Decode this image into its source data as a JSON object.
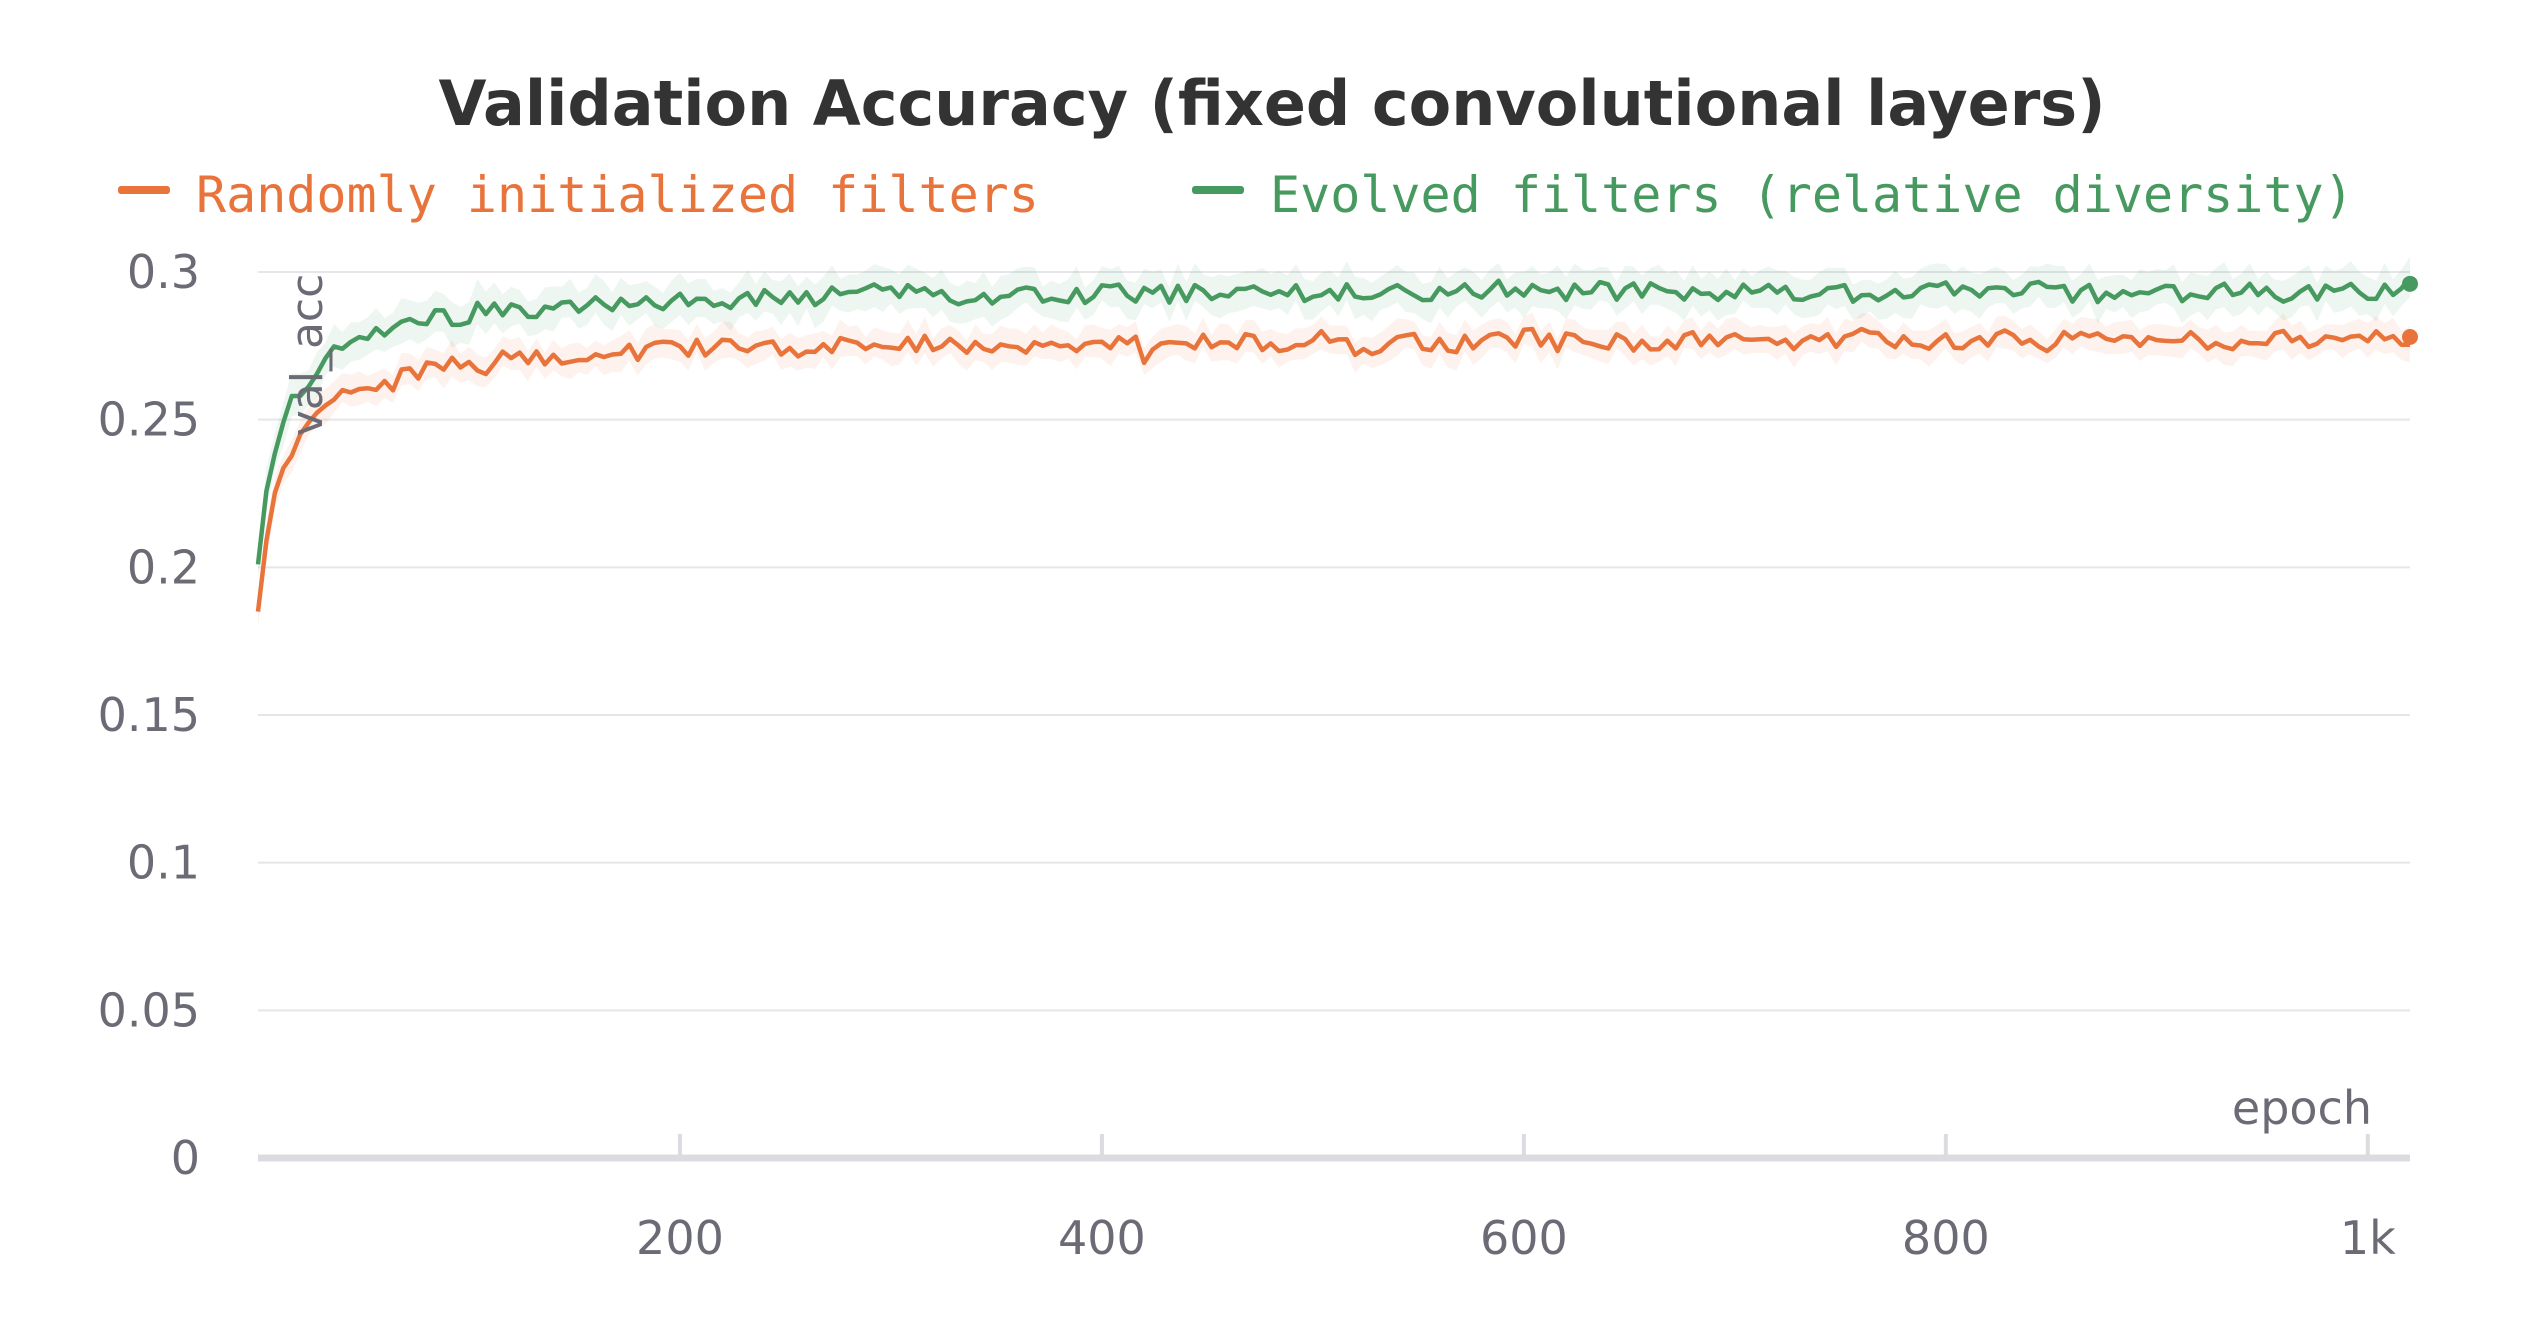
{
  "chart_data": {
    "type": "line",
    "title": "Validation Accuracy (fixed convolutional layers)",
    "xlabel": "epoch",
    "ylabel": "val_acc",
    "xlim": [
      0,
      1020
    ],
    "ylim": [
      0,
      0.3
    ],
    "x_ticks": [
      {
        "value": 200,
        "label": "200"
      },
      {
        "value": 400,
        "label": "400"
      },
      {
        "value": 600,
        "label": "600"
      },
      {
        "value": 800,
        "label": "800"
      },
      {
        "value": 1000,
        "label": "1k"
      }
    ],
    "y_ticks": [
      {
        "value": 0,
        "label": "0"
      },
      {
        "value": 0.05,
        "label": "0.05"
      },
      {
        "value": 0.1,
        "label": "0.1"
      },
      {
        "value": 0.15,
        "label": "0.15"
      },
      {
        "value": 0.2,
        "label": "0.2"
      },
      {
        "value": 0.25,
        "label": "0.25"
      },
      {
        "value": 0.3,
        "label": "0.3"
      }
    ],
    "grid": true,
    "legend_position": "top",
    "series": [
      {
        "name": "Randomly initialized filters",
        "color": "#e8743b",
        "band": 0.004,
        "points": [
          [
            0,
            0.185
          ],
          [
            5,
            0.215
          ],
          [
            10,
            0.232
          ],
          [
            15,
            0.236
          ],
          [
            20,
            0.245
          ],
          [
            25,
            0.25
          ],
          [
            30,
            0.254
          ],
          [
            35,
            0.256
          ],
          [
            40,
            0.26
          ],
          [
            45,
            0.259
          ],
          [
            50,
            0.262
          ],
          [
            55,
            0.261
          ],
          [
            60,
            0.263
          ],
          [
            65,
            0.262
          ],
          [
            70,
            0.27
          ],
          [
            75,
            0.264
          ],
          [
            80,
            0.272
          ],
          [
            85,
            0.266
          ],
          [
            90,
            0.268
          ],
          [
            100,
            0.269
          ],
          [
            110,
            0.268
          ],
          [
            120,
            0.272
          ],
          [
            130,
            0.27
          ],
          [
            140,
            0.273
          ],
          [
            150,
            0.27
          ],
          [
            160,
            0.272
          ],
          [
            170,
            0.275
          ],
          [
            180,
            0.272
          ],
          [
            190,
            0.276
          ],
          [
            200,
            0.274
          ],
          [
            220,
            0.275
          ],
          [
            240,
            0.273
          ],
          [
            260,
            0.275
          ],
          [
            280,
            0.276
          ],
          [
            300,
            0.274
          ],
          [
            320,
            0.276
          ],
          [
            340,
            0.275
          ],
          [
            360,
            0.276
          ],
          [
            380,
            0.274
          ],
          [
            400,
            0.275
          ],
          [
            410,
            0.28
          ],
          [
            420,
            0.272
          ],
          [
            440,
            0.276
          ],
          [
            460,
            0.277
          ],
          [
            480,
            0.275
          ],
          [
            500,
            0.278
          ],
          [
            520,
            0.274
          ],
          [
            540,
            0.277
          ],
          [
            560,
            0.275
          ],
          [
            580,
            0.277
          ],
          [
            600,
            0.278
          ],
          [
            620,
            0.276
          ],
          [
            640,
            0.277
          ],
          [
            660,
            0.276
          ],
          [
            680,
            0.277
          ],
          [
            700,
            0.276
          ],
          [
            720,
            0.277
          ],
          [
            740,
            0.276
          ],
          [
            760,
            0.278
          ],
          [
            780,
            0.277
          ],
          [
            800,
            0.276
          ],
          [
            820,
            0.278
          ],
          [
            840,
            0.276
          ],
          [
            860,
            0.277
          ],
          [
            880,
            0.278
          ],
          [
            900,
            0.276
          ],
          [
            920,
            0.277
          ],
          [
            940,
            0.277
          ],
          [
            960,
            0.278
          ],
          [
            980,
            0.276
          ],
          [
            1000,
            0.278
          ],
          [
            1020,
            0.278
          ]
        ]
      },
      {
        "name": "Evolved filters (relative diversity)",
        "color": "#479a5f",
        "band": 0.005,
        "points": [
          [
            0,
            0.201
          ],
          [
            5,
            0.232
          ],
          [
            10,
            0.243
          ],
          [
            15,
            0.258
          ],
          [
            20,
            0.258
          ],
          [
            25,
            0.262
          ],
          [
            30,
            0.268
          ],
          [
            35,
            0.275
          ],
          [
            40,
            0.274
          ],
          [
            45,
            0.277
          ],
          [
            50,
            0.277
          ],
          [
            55,
            0.279
          ],
          [
            60,
            0.276
          ],
          [
            65,
            0.28
          ],
          [
            70,
            0.283
          ],
          [
            75,
            0.281
          ],
          [
            80,
            0.284
          ],
          [
            90,
            0.284
          ],
          [
            100,
            0.286
          ],
          [
            110,
            0.287
          ],
          [
            120,
            0.288
          ],
          [
            130,
            0.287
          ],
          [
            140,
            0.289
          ],
          [
            150,
            0.288
          ],
          [
            160,
            0.29
          ],
          [
            170,
            0.289
          ],
          [
            180,
            0.29
          ],
          [
            190,
            0.29
          ],
          [
            200,
            0.291
          ],
          [
            220,
            0.29
          ],
          [
            240,
            0.292
          ],
          [
            260,
            0.291
          ],
          [
            280,
            0.292
          ],
          [
            300,
            0.293
          ],
          [
            320,
            0.292
          ],
          [
            340,
            0.292
          ],
          [
            360,
            0.293
          ],
          [
            380,
            0.292
          ],
          [
            400,
            0.293
          ],
          [
            420,
            0.293
          ],
          [
            440,
            0.292
          ],
          [
            460,
            0.294
          ],
          [
            480,
            0.292
          ],
          [
            500,
            0.293
          ],
          [
            520,
            0.293
          ],
          [
            540,
            0.294
          ],
          [
            560,
            0.292
          ],
          [
            580,
            0.294
          ],
          [
            600,
            0.294
          ],
          [
            620,
            0.293
          ],
          [
            640,
            0.294
          ],
          [
            660,
            0.293
          ],
          [
            680,
            0.293
          ],
          [
            700,
            0.294
          ],
          [
            720,
            0.293
          ],
          [
            740,
            0.293
          ],
          [
            760,
            0.292
          ],
          [
            780,
            0.294
          ],
          [
            800,
            0.294
          ],
          [
            820,
            0.293
          ],
          [
            840,
            0.294
          ],
          [
            860,
            0.293
          ],
          [
            880,
            0.293
          ],
          [
            900,
            0.292
          ],
          [
            920,
            0.293
          ],
          [
            940,
            0.293
          ],
          [
            960,
            0.292
          ],
          [
            980,
            0.294
          ],
          [
            1000,
            0.293
          ],
          [
            1020,
            0.296
          ]
        ]
      }
    ]
  }
}
